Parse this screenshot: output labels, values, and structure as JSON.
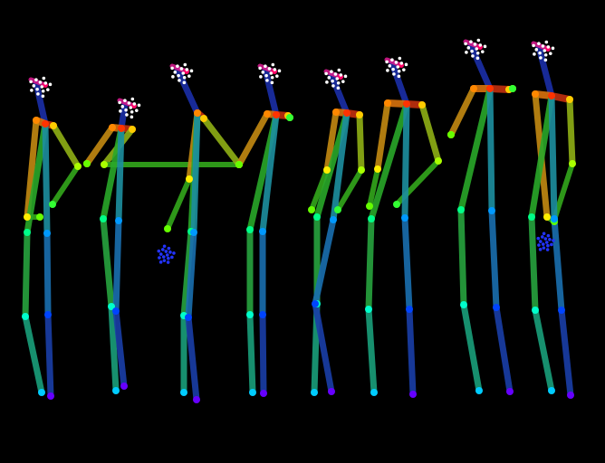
{
  "scene": {
    "description_type": "pose-skeleton-render",
    "background_color": "#000000",
    "figure_count": 8
  },
  "colors": {
    "head": "#d41a8c",
    "neck": "#1b2fa8",
    "shoulder_left": "#d9730e",
    "shoulder_right": "#c2300f",
    "upper_arm_left": "#c48a12",
    "upper_arm_right": "#8fb016",
    "forearm": "#33a81c",
    "torso_left": "#2aa82a",
    "torso_right": "#1d8fa0",
    "thigh_left": "#27a43f",
    "thigh_right": "#1a6fb0",
    "shin_left": "#1a9f7a",
    "shin_right": "#1a3fa8",
    "hand_points": "#2233ff",
    "face_points": "#ffffff"
  }
}
